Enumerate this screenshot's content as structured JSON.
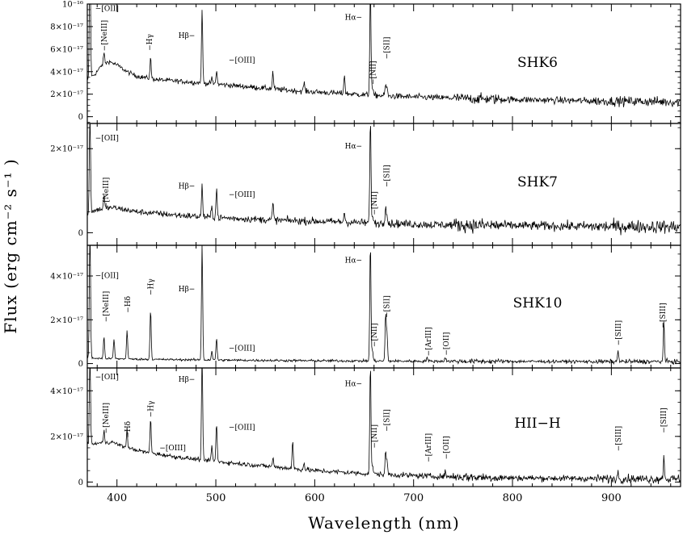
{
  "chart_data": {
    "type": "line",
    "xlabel": "Wavelength (nm)",
    "ylabel": "Flux (erg cm⁻² s⁻¹ )",
    "xlim": [
      370,
      970
    ],
    "xticks": [
      400,
      500,
      600,
      700,
      800,
      900
    ],
    "xtick_labels": [
      "400",
      "500",
      "600",
      "700",
      "800",
      "900"
    ],
    "panels": [
      {
        "name": "SHK6",
        "ylim": [
          -6e-18,
          1e-16
        ],
        "yticks": [
          0,
          2e-17,
          4e-17,
          6e-17,
          8e-17,
          1e-16
        ],
        "ytick_labels": [
          "0",
          "2×10⁻¹⁷",
          "4×10⁻¹⁷",
          "6×10⁻¹⁷",
          "8×10⁻¹⁷",
          "10⁻¹⁶"
        ],
        "continuum": [
          [
            370,
            3.2e-17
          ],
          [
            378,
            3.8e-17
          ],
          [
            385,
            4.6e-17
          ],
          [
            392,
            4.9e-17
          ],
          [
            400,
            4.6e-17
          ],
          [
            410,
            4e-17
          ],
          [
            420,
            3.6e-17
          ],
          [
            440,
            3.3e-17
          ],
          [
            470,
            3.1e-17
          ],
          [
            500,
            2.9e-17
          ],
          [
            540,
            2.6e-17
          ],
          [
            580,
            2.3e-17
          ],
          [
            620,
            2.1e-17
          ],
          [
            660,
            1.9e-17
          ],
          [
            700,
            1.75e-17
          ],
          [
            760,
            1.6e-17
          ],
          [
            820,
            1.5e-17
          ],
          [
            880,
            1.4e-17
          ],
          [
            940,
            1.35e-17
          ],
          [
            970,
            1.3e-17
          ]
        ],
        "noise": 2.5e-18,
        "lines": [
          [
            372.7,
            1.1e-16
          ],
          [
            386.9,
            1e-17
          ],
          [
            434.0,
            1.8e-17
          ],
          [
            486.1,
            6.5e-17
          ],
          [
            495.9,
            5e-18
          ],
          [
            500.7,
            1.2e-17
          ],
          [
            557.7,
            1.5e-17
          ],
          [
            589.3,
            8e-18
          ],
          [
            630.0,
            1.7e-17
          ],
          [
            656.3,
            9.5e-17
          ],
          [
            658.4,
            6e-18
          ],
          [
            671.7,
            1e-17
          ],
          [
            673.1,
            6e-18
          ]
        ],
        "annotations": [
          {
            "text": "[OII]",
            "wl": 378,
            "flux": 9.4e-17
          },
          {
            "text": "[NeIII]",
            "wl": 387,
            "flux": 7.2e-17
          },
          {
            "text": "Hγ",
            "wl": 433,
            "flux": 6.6e-17
          },
          {
            "text": "Hβ",
            "wl": 479,
            "flux": 7e-17
          },
          {
            "text": "[OIII]",
            "wl": 513,
            "flux": 4.8e-17
          },
          {
            "text": "Hα",
            "wl": 648,
            "flux": 8.6e-17
          },
          {
            "text": "[NII]",
            "wl": 659,
            "flux": 3.9e-17
          },
          {
            "text": "[SII]",
            "wl": 673,
            "flux": 6.1e-17
          }
        ]
      },
      {
        "name": "SHK7",
        "ylim": [
          -3e-18,
          2.6e-17
        ],
        "yticks": [
          0,
          2e-17
        ],
        "ytick_labels": [
          "0",
          "2×10⁻¹⁷"
        ],
        "continuum": [
          [
            370,
            4.5e-18
          ],
          [
            380,
            5.5e-18
          ],
          [
            395,
            6e-18
          ],
          [
            420,
            5e-18
          ],
          [
            460,
            4.2e-18
          ],
          [
            500,
            3.6e-18
          ],
          [
            560,
            3e-18
          ],
          [
            620,
            2.6e-18
          ],
          [
            660,
            2.3e-18
          ],
          [
            720,
            1.9e-18
          ],
          [
            800,
            1.7e-18
          ],
          [
            880,
            1.5e-18
          ],
          [
            970,
            1.4e-18
          ]
        ],
        "noise": 9e-19,
        "lines": [
          [
            372.7,
            2.4e-17
          ],
          [
            386.9,
            3e-18
          ],
          [
            486.1,
            7.5e-18
          ],
          [
            495.9,
            2.5e-18
          ],
          [
            500.7,
            7e-18
          ],
          [
            557.7,
            4e-18
          ],
          [
            630.0,
            2.5e-18
          ],
          [
            656.3,
            2.45e-17
          ],
          [
            658.4,
            2e-18
          ],
          [
            671.7,
            4.5e-18
          ],
          [
            673.1,
            2e-18
          ]
        ],
        "annotations": [
          {
            "text": "[OII]",
            "wl": 378,
            "flux": 2.2e-17
          },
          {
            "text": "[NeIII]",
            "wl": 389,
            "flux": 9.5e-18
          },
          {
            "text": "Hβ",
            "wl": 479,
            "flux": 1.05e-17
          },
          {
            "text": "[OIII]",
            "wl": 513,
            "flux": 8.5e-18
          },
          {
            "text": "Hα",
            "wl": 648,
            "flux": 2e-17
          },
          {
            "text": "[NII]",
            "wl": 660,
            "flux": 7e-18
          },
          {
            "text": "[SII]",
            "wl": 673,
            "flux": 1.35e-17
          }
        ]
      },
      {
        "name": "SHK10",
        "ylim": [
          -2e-18,
          5.4e-17
        ],
        "yticks": [
          0,
          2e-17,
          4e-17
        ],
        "ytick_labels": [
          "0",
          "2×10⁻¹⁷",
          "4×10⁻¹⁷"
        ],
        "continuum": [
          [
            370,
            2.5e-18
          ],
          [
            420,
            2e-18
          ],
          [
            500,
            1.6e-18
          ],
          [
            600,
            1.3e-18
          ],
          [
            700,
            1.1e-18
          ],
          [
            800,
            1e-18
          ],
          [
            900,
            9e-19
          ],
          [
            970,
            9e-19
          ]
        ],
        "noise": 6e-19,
        "lines": [
          [
            372.7,
            6e-17
          ],
          [
            386.9,
            1e-17
          ],
          [
            397.0,
            9e-18
          ],
          [
            410.2,
            1.3e-17
          ],
          [
            434.0,
            2.3e-17
          ],
          [
            486.1,
            5.3e-17
          ],
          [
            495.9,
            4e-18
          ],
          [
            500.7,
            1e-17
          ],
          [
            656.3,
            5.4e-17
          ],
          [
            658.4,
            5e-18
          ],
          [
            671.7,
            2.1e-17
          ],
          [
            673.1,
            1.2e-17
          ],
          [
            713.6,
            2e-18
          ],
          [
            732.0,
            2e-18
          ],
          [
            906.9,
            5e-18
          ],
          [
            953.1,
            1.8e-17
          ]
        ],
        "annotations": [
          {
            "text": "[OII]",
            "wl": 378,
            "flux": 3.9e-17
          },
          {
            "text": "[NeIII]",
            "wl": 389,
            "flux": 2.6e-17
          },
          {
            "text": "Hδ",
            "wl": 411,
            "flux": 2.7e-17
          },
          {
            "text": "Hγ",
            "wl": 434,
            "flux": 3.5e-17
          },
          {
            "text": "Hβ",
            "wl": 479,
            "flux": 3.3e-17
          },
          {
            "text": "[OIII]",
            "wl": 513,
            "flux": 6e-18
          },
          {
            "text": "Hα",
            "wl": 648,
            "flux": 4.6e-17
          },
          {
            "text": "[NII]",
            "wl": 660,
            "flux": 1.3e-17
          },
          {
            "text": "[SII]",
            "wl": 673,
            "flux": 2.6e-17
          },
          {
            "text": "[ArIII]",
            "wl": 715,
            "flux": 1e-17
          },
          {
            "text": "[OII]",
            "wl": 733,
            "flux": 9e-18
          },
          {
            "text": "[SIII]",
            "wl": 907,
            "flux": 1.4e-17
          },
          {
            "text": "[SIII]",
            "wl": 952,
            "flux": 2.2e-17
          }
        ]
      },
      {
        "name": "HII−H",
        "ylim": [
          -2e-18,
          5e-17
        ],
        "yticks": [
          0,
          2e-17,
          4e-17
        ],
        "ytick_labels": [
          "0",
          "2×10⁻¹⁷",
          "4×10⁻¹⁷"
        ],
        "continuum": [
          [
            370,
            1.6e-17
          ],
          [
            380,
            1.7e-17
          ],
          [
            395,
            1.75e-17
          ],
          [
            410,
            1.5e-17
          ],
          [
            430,
            1.3e-17
          ],
          [
            460,
            1.1e-17
          ],
          [
            500,
            9e-18
          ],
          [
            550,
            7e-18
          ],
          [
            600,
            5e-18
          ],
          [
            660,
            3.5e-18
          ],
          [
            720,
            2.5e-18
          ],
          [
            800,
            1.8e-18
          ],
          [
            880,
            1.5e-18
          ],
          [
            970,
            1.3e-18
          ]
        ],
        "noise": 1.1e-18,
        "lines": [
          [
            372.7,
            4e-17
          ],
          [
            386.9,
            5e-18
          ],
          [
            410.2,
            8e-18
          ],
          [
            434.0,
            1.5e-17
          ],
          [
            486.1,
            4.5e-17
          ],
          [
            495.9,
            7e-18
          ],
          [
            500.7,
            1.7e-17
          ],
          [
            557.7,
            4e-18
          ],
          [
            577.7,
            1.2e-17
          ],
          [
            589.3,
            3e-18
          ],
          [
            656.3,
            4.8e-17
          ],
          [
            658.4,
            4e-18
          ],
          [
            671.7,
            9e-18
          ],
          [
            673.1,
            6e-18
          ],
          [
            732.0,
            2e-18
          ],
          [
            906.9,
            3e-18
          ],
          [
            953.1,
            1e-17
          ]
        ],
        "annotations": [
          {
            "text": "[OII]",
            "wl": 378,
            "flux": 4.5e-17
          },
          {
            "text": "[NeIII]",
            "wl": 389,
            "flux": 2.8e-17
          },
          {
            "text": "Hδ",
            "wl": 411,
            "flux": 2.3e-17
          },
          {
            "text": "Hγ",
            "wl": 434,
            "flux": 3.2e-17
          },
          {
            "text": "[OIII]",
            "wl": 443,
            "flux": 1.4e-17
          },
          {
            "text": "Hβ",
            "wl": 479,
            "flux": 4.4e-17
          },
          {
            "text": "[OIII]",
            "wl": 513,
            "flux": 2.3e-17
          },
          {
            "text": "Hα",
            "wl": 648,
            "flux": 4.2e-17
          },
          {
            "text": "[NII]",
            "wl": 660,
            "flux": 2e-17
          },
          {
            "text": "[SII]",
            "wl": 673,
            "flux": 2.7e-17
          },
          {
            "text": "[ArIII]",
            "wl": 715,
            "flux": 1.5e-17
          },
          {
            "text": "[OII]",
            "wl": 733,
            "flux": 1.5e-17
          },
          {
            "text": "[SIII]",
            "wl": 907,
            "flux": 1.9e-17
          },
          {
            "text": "[SIII]",
            "wl": 953,
            "flux": 2.7e-17
          }
        ]
      }
    ]
  }
}
